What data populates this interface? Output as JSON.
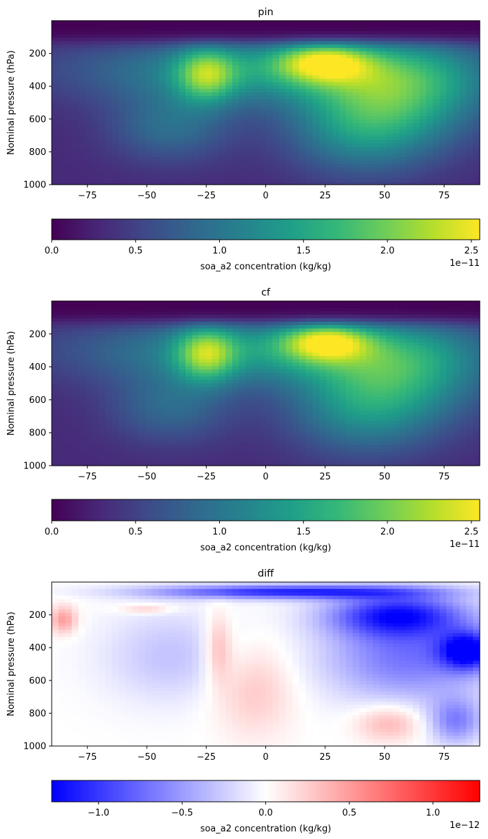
{
  "chart_data": [
    {
      "type": "heatmap",
      "title": "pin",
      "xlabel": "",
      "ylabel": "Nominal pressure (hPa)",
      "xlim": [
        -90,
        90
      ],
      "ylim": [
        1000,
        0
      ],
      "xticks": [
        "−75",
        "−50",
        "−25",
        "0",
        "25",
        "50",
        "75"
      ],
      "yticks": [
        "200",
        "400",
        "600",
        "800",
        "1000"
      ],
      "colormap": "viridis",
      "field": {
        "background": 0.3,
        "blobs": [
          {
            "lat": -25,
            "p": 330,
            "amp": 1.15,
            "sx": 9,
            "sy": 120
          },
          {
            "lat": 24,
            "p": 250,
            "amp": 1.35,
            "sx": 14,
            "sy": 90
          },
          {
            "lat": 0,
            "p": 300,
            "amp": 1.0,
            "sx": 55,
            "sy": 150
          },
          {
            "lat": 60,
            "p": 420,
            "amp": 1.0,
            "sx": 25,
            "sy": 220
          },
          {
            "lat": 40,
            "p": 650,
            "amp": 0.9,
            "sx": 22,
            "sy": 200
          },
          {
            "lat": -40,
            "p": 650,
            "amp": 0.6,
            "sx": 18,
            "sy": 150
          }
        ],
        "top_cutoff_hpa": 120
      },
      "colorbar": {
        "label": "soa_a2 concentration (kg/kg)",
        "range": [
          0.0,
          2.55
        ],
        "ticks": [
          "0.0",
          "0.5",
          "1.0",
          "1.5",
          "2.0",
          "2.5"
        ],
        "offset_text": "1e−11"
      }
    },
    {
      "type": "heatmap",
      "title": "cf",
      "xlabel": "",
      "ylabel": "Nominal pressure (hPa)",
      "xlim": [
        -90,
        90
      ],
      "ylim": [
        1000,
        0
      ],
      "xticks": [
        "−75",
        "−50",
        "−25",
        "0",
        "25",
        "50",
        "75"
      ],
      "yticks": [
        "200",
        "400",
        "600",
        "800",
        "1000"
      ],
      "colormap": "viridis",
      "field": {
        "background": 0.3,
        "blobs": [
          {
            "lat": -25,
            "p": 320,
            "amp": 1.2,
            "sx": 9,
            "sy": 120
          },
          {
            "lat": 25,
            "p": 245,
            "amp": 1.4,
            "sx": 13,
            "sy": 85
          },
          {
            "lat": 0,
            "p": 300,
            "amp": 1.0,
            "sx": 55,
            "sy": 150
          },
          {
            "lat": 60,
            "p": 430,
            "amp": 0.85,
            "sx": 25,
            "sy": 220
          },
          {
            "lat": 40,
            "p": 650,
            "amp": 0.8,
            "sx": 22,
            "sy": 200
          },
          {
            "lat": -40,
            "p": 650,
            "amp": 0.55,
            "sx": 18,
            "sy": 150
          }
        ],
        "top_cutoff_hpa": 120
      },
      "colorbar": {
        "label": "soa_a2 concentration (kg/kg)",
        "range": [
          0.0,
          2.55
        ],
        "ticks": [
          "0.0",
          "0.5",
          "1.0",
          "1.5",
          "2.0",
          "2.5"
        ],
        "offset_text": "1e−11"
      }
    },
    {
      "type": "heatmap",
      "title": "diff",
      "xlabel": "",
      "ylabel": "Nominal pressure (hPa)",
      "xlim": [
        -90,
        90
      ],
      "ylim": [
        1000,
        0
      ],
      "xticks": [
        "−75",
        "−50",
        "−25",
        "0",
        "25",
        "50",
        "75"
      ],
      "yticks": [
        "200",
        "400",
        "600",
        "800",
        "1000"
      ],
      "colormap": "bwr",
      "field": {
        "blobs": [
          {
            "lat": 10,
            "p": 60,
            "amp": -1.1,
            "sx": 40,
            "sy": 30
          },
          {
            "lat": 55,
            "p": 200,
            "amp": -1.0,
            "sx": 20,
            "sy": 90
          },
          {
            "lat": 85,
            "p": 420,
            "amp": -1.2,
            "sx": 8,
            "sy": 80
          },
          {
            "lat": 60,
            "p": 450,
            "amp": -0.7,
            "sx": 25,
            "sy": 200
          },
          {
            "lat": -85,
            "p": 230,
            "amp": 0.5,
            "sx": 4,
            "sy": 60
          },
          {
            "lat": -50,
            "p": 165,
            "amp": 0.3,
            "sx": 8,
            "sy": 20
          },
          {
            "lat": -20,
            "p": 400,
            "amp": 0.4,
            "sx": 4,
            "sy": 150
          },
          {
            "lat": -5,
            "p": 650,
            "amp": 0.3,
            "sx": 12,
            "sy": 200
          },
          {
            "lat": 52,
            "p": 860,
            "amp": 0.4,
            "sx": 10,
            "sy": 80
          },
          {
            "lat": -40,
            "p": 450,
            "amp": -0.3,
            "sx": 20,
            "sy": 200
          },
          {
            "lat": 80,
            "p": 850,
            "amp": -0.6,
            "sx": 8,
            "sy": 100
          }
        ]
      },
      "colorbar": {
        "label": "soa_a2 concentration (kg/kg)",
        "range": [
          -1.28,
          1.28
        ],
        "ticks": [
          "−1.0",
          "−0.5",
          "0.0",
          "0.5",
          "1.0"
        ],
        "tick_values": [
          -1.0,
          -0.5,
          0.0,
          0.5,
          1.0
        ],
        "offset_text": "1e−12"
      }
    }
  ]
}
